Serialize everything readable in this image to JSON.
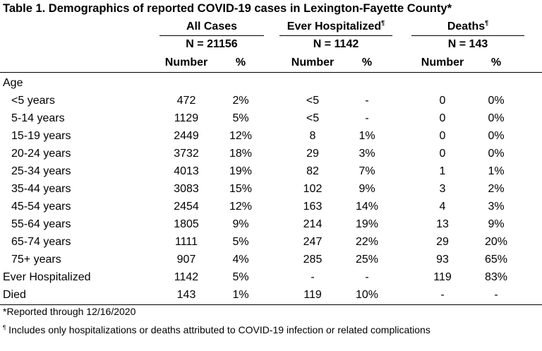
{
  "title": "Table 1. Demographics of reported COVID-19 cases in Lexington-Fayette County*",
  "groups": [
    {
      "label": "All Cases",
      "mark": "",
      "n": "N = 21156"
    },
    {
      "label": "Ever Hospitalized",
      "mark": "¶",
      "n": "N = 1142"
    },
    {
      "label": "Deaths",
      "mark": "¶",
      "n": "N = 143"
    }
  ],
  "subheaders": [
    "Number",
    "%",
    "Number",
    "%",
    "Number",
    "%"
  ],
  "section_age": "Age",
  "rows": [
    {
      "label": "<5 years",
      "indent": true,
      "values": [
        "472",
        "2%",
        "<5",
        "-",
        "0",
        "0%"
      ]
    },
    {
      "label": "5-14 years",
      "indent": true,
      "values": [
        "1129",
        "5%",
        "<5",
        "-",
        "0",
        "0%"
      ]
    },
    {
      "label": "15-19 years",
      "indent": true,
      "values": [
        "2449",
        "12%",
        "8",
        "1%",
        "0",
        "0%"
      ]
    },
    {
      "label": "20-24 years",
      "indent": true,
      "values": [
        "3732",
        "18%",
        "29",
        "3%",
        "0",
        "0%"
      ]
    },
    {
      "label": "25-34 years",
      "indent": true,
      "values": [
        "4013",
        "19%",
        "82",
        "7%",
        "1",
        "1%"
      ]
    },
    {
      "label": "35-44 years",
      "indent": true,
      "values": [
        "3083",
        "15%",
        "102",
        "9%",
        "3",
        "2%"
      ]
    },
    {
      "label": "45-54 years",
      "indent": true,
      "values": [
        "2454",
        "12%",
        "163",
        "14%",
        "4",
        "3%"
      ]
    },
    {
      "label": "55-64 years",
      "indent": true,
      "values": [
        "1805",
        "9%",
        "214",
        "19%",
        "13",
        "9%"
      ]
    },
    {
      "label": "65-74 years",
      "indent": true,
      "values": [
        "1111",
        "5%",
        "247",
        "22%",
        "29",
        "20%"
      ]
    },
    {
      "label": "75+ years",
      "indent": true,
      "values": [
        "907",
        "4%",
        "285",
        "25%",
        "93",
        "65%"
      ]
    },
    {
      "label": "Ever Hospitalized",
      "indent": false,
      "values": [
        "1142",
        "5%",
        "-",
        "-",
        "119",
        "83%"
      ]
    },
    {
      "label": "Died",
      "indent": false,
      "values": [
        "143",
        "1%",
        "119",
        "10%",
        "-",
        "-"
      ]
    }
  ],
  "footnotes": {
    "reported": "*Reported through 12/16/2020",
    "mark": "¶",
    "includes": " Includes only hospitalizations or deaths attributed to COVID-19 infection or related complications"
  }
}
